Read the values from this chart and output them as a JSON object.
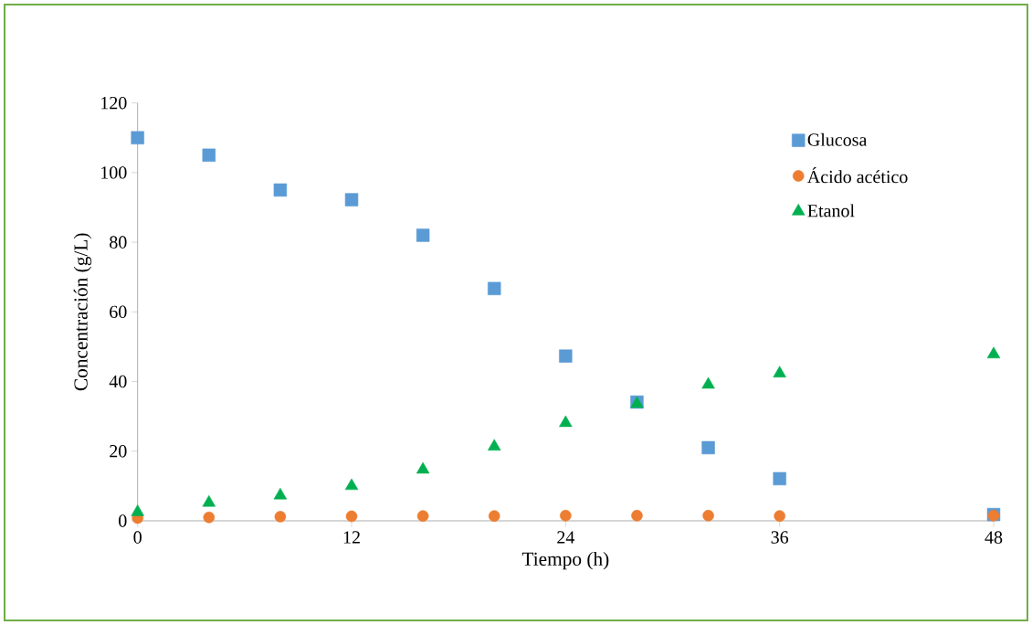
{
  "chart_data": {
    "type": "scatter",
    "xlabel": "Tiempo (h)",
    "ylabel": "Concentración (g/L)",
    "x": [
      0,
      4,
      8,
      12,
      16,
      20,
      24,
      28,
      32,
      36,
      48
    ],
    "series": [
      {
        "name": "Glucosa",
        "color": "#5b9bd5",
        "marker": "square",
        "values": [
          110,
          105,
          95,
          92.2,
          82,
          66.7,
          47.3,
          34.1,
          21,
          12.1,
          1.8
        ]
      },
      {
        "name": "Ácido acético",
        "color": "#ed7d31",
        "marker": "circle",
        "values": [
          0.8,
          1,
          1.2,
          1.3,
          1.4,
          1.4,
          1.5,
          1.5,
          1.5,
          1.4,
          1.5
        ]
      },
      {
        "name": "Etanol",
        "color": "#00b050",
        "marker": "triangle",
        "values": [
          2.5,
          5.2,
          7.3,
          10,
          14.7,
          21.3,
          28.1,
          33.6,
          39.1,
          42.3,
          47.8
        ]
      }
    ],
    "xlim": [
      0,
      48
    ],
    "xticks": [
      0,
      12,
      24,
      36,
      48
    ],
    "ylim": [
      0,
      120
    ],
    "yticks": [
      0,
      20,
      40,
      60,
      80,
      100,
      120
    ],
    "grid": false,
    "legend": "top right"
  }
}
